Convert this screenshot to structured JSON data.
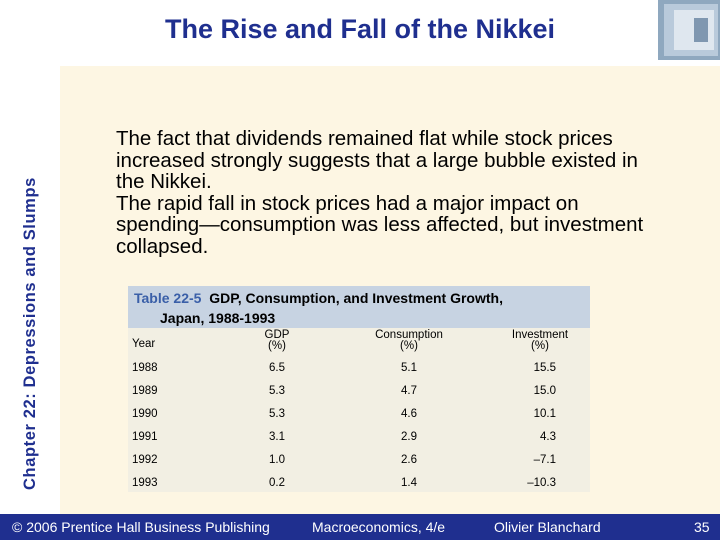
{
  "title": "The Rise and Fall of the Nikkei",
  "sidebar": "Chapter 22: Depressions and Slumps",
  "body": [
    "The fact that dividends remained flat while stock prices increased strongly suggests that a large bubble existed in the Nikkei.",
    "The rapid fall in stock prices had a major impact on spending—consumption was less affected, but investment collapsed."
  ],
  "table": {
    "label": "Table 22-5",
    "caption_line1": "GDP, Consumption, and Investment Growth,",
    "caption_line2": "Japan, 1988-1993",
    "headers": {
      "year": "Year",
      "gdp": "GDP",
      "gdp_unit": "(%)",
      "consumption": "Consumption",
      "consumption_unit": "(%)",
      "investment": "Investment",
      "investment_unit": "(%)"
    },
    "rows": [
      {
        "year": "1988",
        "gdp": "6.5",
        "consumption": "5.1",
        "investment": "15.5"
      },
      {
        "year": "1989",
        "gdp": "5.3",
        "consumption": "4.7",
        "investment": "15.0"
      },
      {
        "year": "1990",
        "gdp": "5.3",
        "consumption": "4.6",
        "investment": "10.1"
      },
      {
        "year": "1991",
        "gdp": "3.1",
        "consumption": "2.9",
        "investment": "4.3"
      },
      {
        "year": "1992",
        "gdp": "1.0",
        "consumption": "2.6",
        "investment": "–7.1"
      },
      {
        "year": "1993",
        "gdp": "0.2",
        "consumption": "1.4",
        "investment": "–10.3"
      }
    ]
  },
  "footer": {
    "copyright": "© 2006 Prentice Hall Business Publishing",
    "book": "Macroeconomics, 4/e",
    "author": "Olivier Blanchard",
    "page": "35"
  },
  "colors": {
    "brand_blue": "#1f2f8f",
    "content_bg": "#fdf6e3",
    "table_header_bg": "#c7d3e2"
  }
}
